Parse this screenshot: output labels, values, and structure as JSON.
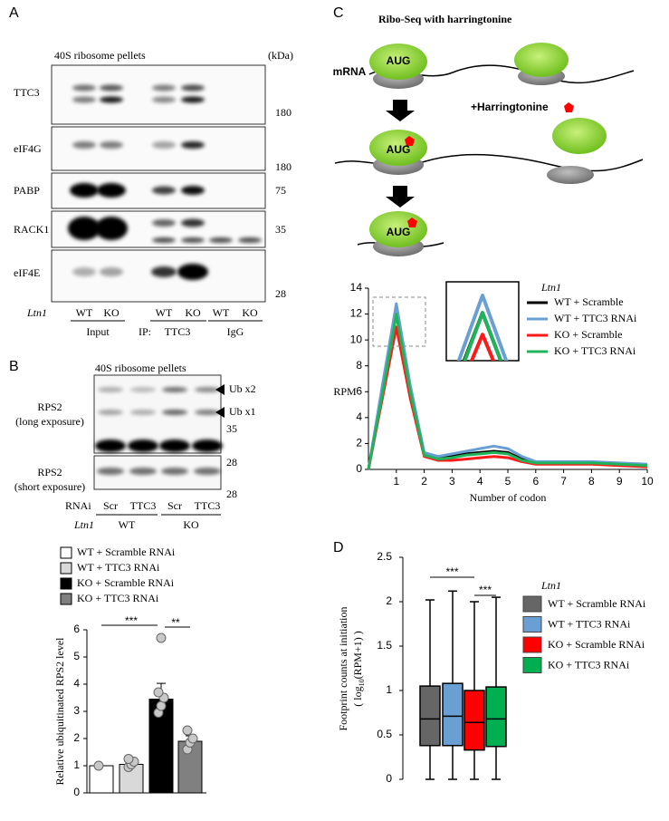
{
  "panels": {
    "A": {
      "label": "A",
      "header": "40S ribosome pellets",
      "unit": "(kDa)",
      "rows": [
        {
          "name": "TTC3",
          "marker": "180"
        },
        {
          "name": "eIF4G",
          "marker": "180"
        },
        {
          "name": "PABP",
          "marker": "75"
        },
        {
          "name": "RACK1",
          "marker": "35"
        },
        {
          "name": "eIF4E",
          "marker": "28"
        }
      ],
      "genotype": "Ltn1",
      "lanes": [
        "WT",
        "KO",
        "WT",
        "KO",
        "WT",
        "KO"
      ],
      "groups": [
        "Input",
        "IP:",
        "TTC3",
        "IgG"
      ]
    },
    "B": {
      "label": "B",
      "header": "40S ribosome pellets",
      "long_exposure": [
        "RPS2",
        "(long exposure)"
      ],
      "short_exposure": [
        "RPS2",
        "(short exposure)"
      ],
      "bands": [
        "Ub x2",
        "Ub x1"
      ],
      "markers": [
        "35",
        "28",
        "28"
      ],
      "rnai": "RNAi",
      "rnai_lanes": [
        "Scr",
        "TTC3",
        "Scr",
        "TTC3"
      ],
      "genotype": "Ltn1",
      "genotype_lanes": [
        "WT",
        "KO"
      ]
    },
    "C": {
      "label": "C",
      "title": "Ribo-Seq with harringtonine",
      "mrna": "mRNA",
      "aug": [
        "AUG",
        "AUG",
        "AUG"
      ],
      "drug": "+Harringtonine"
    },
    "D": {
      "label": "D"
    }
  },
  "chart_data": [
    {
      "type": "bar",
      "ylabel": "Relative ubiquitinated RPS2 level",
      "ylim": [
        0,
        6
      ],
      "yticks": [
        0,
        1,
        2,
        3,
        4,
        5,
        6
      ],
      "series": [
        {
          "name": "WT + Scramble RNAi",
          "color": "#ffffff",
          "value": 1.0,
          "error": 0,
          "points": [
            1.0
          ]
        },
        {
          "name": "WT + TTC3 RNAi",
          "color": "#d9d9d9",
          "value": 1.05,
          "error": 0.08,
          "points": [
            0.95,
            1.05,
            1.15,
            1.25
          ]
        },
        {
          "name": "KO + Scramble RNAi",
          "color": "#000000",
          "value": 3.45,
          "error": 0.58,
          "points": [
            2.95,
            3.2,
            3.5,
            3.7,
            5.7
          ]
        },
        {
          "name": "KO + TTC3 RNAi",
          "color": "#808080",
          "value": 1.9,
          "error": 0.2,
          "points": [
            1.6,
            1.85,
            2.0,
            2.3
          ]
        }
      ],
      "annotations": [
        "***",
        "**"
      ]
    },
    {
      "type": "line",
      "xlabel": "Number of codon",
      "ylabel": "RPM",
      "xlim": [
        0,
        10
      ],
      "xticks": [
        1,
        2,
        3,
        4,
        5,
        6,
        7,
        8,
        9,
        10
      ],
      "ylim": [
        0,
        14
      ],
      "yticks": [
        0,
        2,
        4,
        6,
        8,
        10,
        12,
        14
      ],
      "legend_title": "Ltn1",
      "x": [
        0,
        0.5,
        1,
        1.5,
        2,
        2.5,
        3,
        3.5,
        4,
        4.5,
        5,
        5.5,
        6,
        7,
        8,
        9,
        10
      ],
      "series": [
        {
          "name": "WT + Scramble",
          "color": "#000000",
          "values": [
            0,
            6,
            12,
            6,
            1.2,
            0.9,
            1.0,
            1.2,
            1.3,
            1.4,
            1.3,
            0.8,
            0.5,
            0.5,
            0.5,
            0.4,
            0.3
          ]
        },
        {
          "name": "WT + TTC3 RNAi",
          "color": "#6a9fd4",
          "values": [
            0,
            6.5,
            12.8,
            6.5,
            1.3,
            1.0,
            1.2,
            1.4,
            1.6,
            1.8,
            1.6,
            1.0,
            0.6,
            0.6,
            0.6,
            0.5,
            0.4
          ]
        },
        {
          "name": "KO + Scramble",
          "color": "#ff1a1a",
          "values": [
            0,
            5.5,
            11,
            5.5,
            1.0,
            0.7,
            0.7,
            0.8,
            0.9,
            1.0,
            0.9,
            0.6,
            0.4,
            0.4,
            0.4,
            0.3,
            0.2
          ]
        },
        {
          "name": "KO + TTC3 RNAi",
          "color": "#1fb35a",
          "values": [
            0,
            5.8,
            12,
            6,
            1.1,
            0.8,
            0.9,
            1.1,
            1.2,
            1.3,
            1.2,
            0.7,
            0.5,
            0.5,
            0.5,
            0.4,
            0.3
          ]
        }
      ]
    },
    {
      "type": "box",
      "ylabel": [
        "Footprint counts at initiation",
        "( log",
        "10",
        "(RPM+1) )"
      ],
      "ylim": [
        0,
        2.5
      ],
      "yticks": [
        0,
        0.5,
        1,
        1.5,
        2,
        2.5
      ],
      "legend_title": "Ltn1",
      "series": [
        {
          "name": "WT + Scramble RNAi",
          "color": "#666666",
          "min": 0,
          "q1": 0.38,
          "median": 0.68,
          "q3": 1.05,
          "max": 2.02
        },
        {
          "name": "WT + TTC3 RNAi",
          "color": "#6a9fd4",
          "min": 0,
          "q1": 0.38,
          "median": 0.71,
          "q3": 1.08,
          "max": 2.12
        },
        {
          "name": "KO + Scramble RNAi",
          "color": "#ff0000",
          "min": 0,
          "q1": 0.33,
          "median": 0.64,
          "q3": 1.0,
          "max": 2.0
        },
        {
          "name": "KO + TTC3 RNAi",
          "color": "#00b050",
          "min": 0,
          "q1": 0.37,
          "median": 0.68,
          "q3": 1.04,
          "max": 2.05
        }
      ],
      "annotations": [
        "***",
        "***"
      ]
    }
  ]
}
